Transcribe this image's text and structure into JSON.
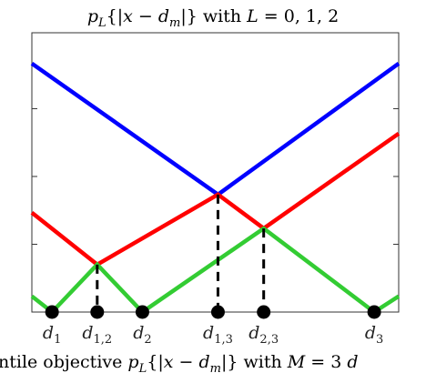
{
  "chart_data": {
    "type": "line",
    "title": "p_L{|x − d_m|} with L = 0, 1, 2",
    "caption": "ntile objective p_L{|x − d_m|} with M = 3 d",
    "xlim": [
      0,
      13.64
    ],
    "ylim": [
      0,
      6.18
    ],
    "grid": false,
    "legend": "none",
    "x_ticks": [
      {
        "sym": "d",
        "sub": "1",
        "x": 0.75
      },
      {
        "sym": "d",
        "sub": "1,2",
        "x": 2.43
      },
      {
        "sym": "d",
        "sub": "2",
        "x": 4.11
      },
      {
        "sym": "d",
        "sub": "1,3",
        "x": 6.92
      },
      {
        "sym": "d",
        "sub": "2,3",
        "x": 8.62
      },
      {
        "sym": "d",
        "sub": "3",
        "x": 12.73
      }
    ],
    "series": [
      {
        "color": "#0000ff",
        "x": [
          0,
          6.92,
          13.64
        ],
        "y": [
          5.5,
          2.6,
          5.5
        ]
      },
      {
        "color": "#ff0000",
        "x": [
          0,
          2.43,
          6.92,
          8.62,
          13.64
        ],
        "y": [
          2.2,
          1.05,
          2.6,
          1.85,
          3.95
        ]
      },
      {
        "color": "#33cc33",
        "x": [
          0,
          0.75,
          2.43,
          4.11,
          8.62,
          12.73,
          13.64
        ],
        "y": [
          0.35,
          0,
          1.05,
          0,
          1.85,
          0,
          0.35
        ]
      }
    ],
    "markers": {
      "color": "#000000",
      "points": [
        {
          "x": 0.75,
          "y": 0
        },
        {
          "x": 2.43,
          "y": 0
        },
        {
          "x": 4.11,
          "y": 0
        },
        {
          "x": 6.92,
          "y": 0
        },
        {
          "x": 8.62,
          "y": 0
        },
        {
          "x": 12.73,
          "y": 0
        }
      ]
    },
    "dashed_lines": [
      {
        "x": 2.43,
        "y_top": 1.05
      },
      {
        "x": 6.92,
        "y_top": 2.6
      },
      {
        "x": 8.62,
        "y_top": 1.85
      }
    ]
  }
}
